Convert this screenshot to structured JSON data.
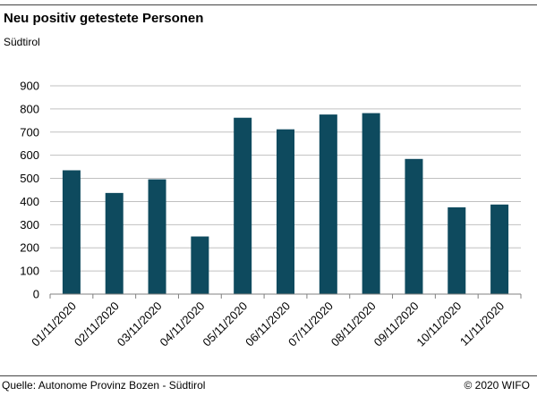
{
  "header": {
    "title": "Neu positiv getestete Personen",
    "subtitle": "Südtirol"
  },
  "footer": {
    "source": "Quelle: Autonome Provinz Bozen - Südtirol",
    "copyright": "© 2020 WIFO"
  },
  "colors": {
    "bar": "#0e4a5e",
    "grid": "#c0c0c0",
    "axis": "#808080"
  },
  "chart_data": {
    "type": "bar",
    "title": "Neu positiv getestete Personen",
    "subtitle": "Südtirol",
    "categories": [
      "01/11/2020",
      "02/11/2020",
      "03/11/2020",
      "04/11/2020",
      "05/11/2020",
      "06/11/2020",
      "07/11/2020",
      "08/11/2020",
      "09/11/2020",
      "10/11/2020",
      "11/11/2020"
    ],
    "values": [
      535,
      437,
      496,
      249,
      762,
      712,
      776,
      782,
      584,
      375,
      387
    ],
    "ylim": [
      0,
      900
    ],
    "yticks": [
      0,
      100,
      200,
      300,
      400,
      500,
      600,
      700,
      800,
      900
    ],
    "grid": true,
    "legend": "none"
  }
}
